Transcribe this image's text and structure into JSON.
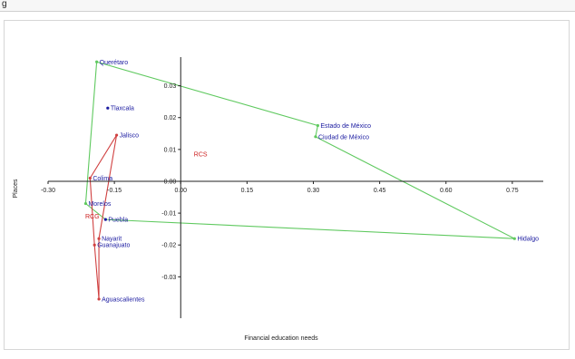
{
  "figure_label": "g",
  "chart_data": {
    "type": "scatter",
    "xlabel": "Financial education needs",
    "ylabel": "Places",
    "xlim": [
      -0.3,
      0.82
    ],
    "ylim": [
      -0.043,
      0.039
    ],
    "x_ticks": [
      -0.3,
      -0.15,
      0.0,
      0.15,
      0.3,
      0.45,
      0.6,
      0.75
    ],
    "x_tick_labels": [
      "-0.30",
      "-0.15",
      "0.00",
      "0.15",
      "0.30",
      "0.45",
      "0.60",
      "0.75"
    ],
    "y_ticks": [
      0.03,
      0.02,
      0.01,
      0.0,
      -0.01,
      -0.02,
      -0.03
    ],
    "y_tick_labels": [
      "0.03",
      "0.02",
      "0.01",
      "0.00",
      "-0.01",
      "-0.02",
      "-0.03"
    ],
    "grid": false,
    "colors": {
      "state": "#1a1aa0",
      "cluster": "#cc2020",
      "hull_green": "#5fc95f",
      "hull_red": "#d04040"
    },
    "points": [
      {
        "label": "Querétaro",
        "x": -0.19,
        "y": 0.0375,
        "group": "green"
      },
      {
        "label": "Tlaxcala",
        "x": -0.165,
        "y": 0.023,
        "group": "state"
      },
      {
        "label": "Estado de México",
        "x": 0.31,
        "y": 0.0175,
        "group": "green"
      },
      {
        "label": "Ciudad de México",
        "x": 0.305,
        "y": 0.014,
        "group": "green"
      },
      {
        "label": "Jalisco",
        "x": -0.145,
        "y": 0.0145,
        "group": "red"
      },
      {
        "label": "RCS",
        "x": 0.045,
        "y": 0.0085,
        "group": "cluster"
      },
      {
        "label": "Colima",
        "x": -0.205,
        "y": 0.001,
        "group": "red"
      },
      {
        "label": "Morelos",
        "x": -0.215,
        "y": -0.007,
        "group": "green"
      },
      {
        "label": "RCG",
        "x": -0.2,
        "y": -0.011,
        "group": "cluster"
      },
      {
        "label": "Puebla",
        "x": -0.17,
        "y": -0.012,
        "group": "state"
      },
      {
        "label": "Nayarit",
        "x": -0.185,
        "y": -0.018,
        "group": "red"
      },
      {
        "label": "Guanajuato",
        "x": -0.195,
        "y": -0.02,
        "group": "red"
      },
      {
        "label": "Aguascalientes",
        "x": -0.185,
        "y": -0.037,
        "group": "red"
      },
      {
        "label": "Hidalgo",
        "x": 0.755,
        "y": -0.018,
        "group": "green"
      }
    ],
    "hulls": [
      {
        "color": "green",
        "vertices": [
          "Querétaro",
          "Estado de México",
          "Ciudad de México",
          "Hidalgo",
          "Puebla",
          "Morelos"
        ]
      },
      {
        "color": "red",
        "vertices": [
          "Jalisco",
          "Colima",
          "Guanajuato",
          "Aguascalientes",
          "Nayarit"
        ]
      }
    ]
  }
}
